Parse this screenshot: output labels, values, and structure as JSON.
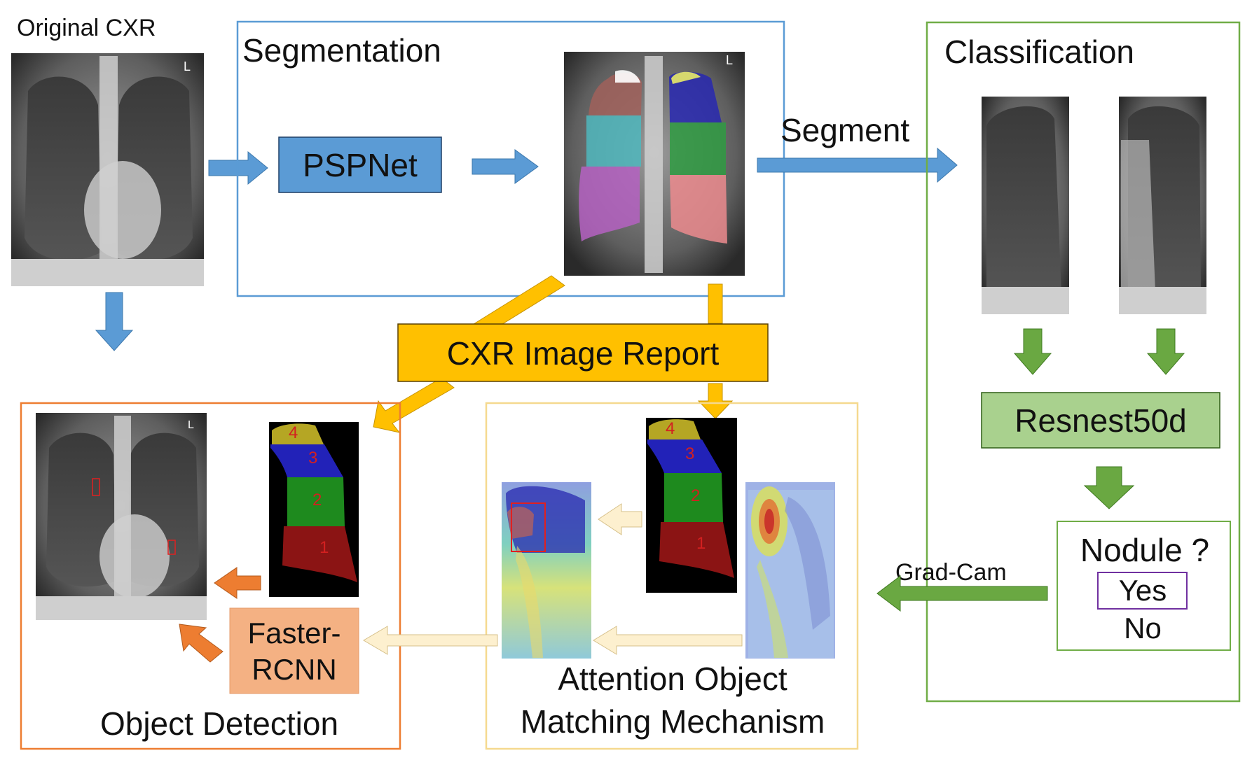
{
  "labels": {
    "original_cxr": "Original CXR",
    "segmentation": "Segmentation",
    "pspnet": "PSPNet",
    "segment": "Segment",
    "classification": "Classification",
    "resnest": "Resnest50d",
    "cxr_report": "CXR Image Report",
    "nodule_question": "Nodule ?",
    "yes": "Yes",
    "no": "No",
    "grad_cam": "Grad-Cam",
    "faster_rcnn_line1": "Faster-",
    "faster_rcnn_line2": "RCNN",
    "object_detection": "Object Detection",
    "attention_line1": "Attention Object",
    "attention_line2": "Matching Mechanism",
    "corner_marker": "L"
  },
  "lung_region_numbers": [
    "4",
    "3",
    "2",
    "1"
  ],
  "colors": {
    "segmentation_box": "#5b9bd5",
    "classification_box": "#70ad47",
    "detection_box": "#ed7d31",
    "attention_box": "#f5d98f",
    "blue_block": "#5b9bd5",
    "green_block": "#a9d18e",
    "report_block": "#ffc000",
    "faster_rcnn_block": "#f4b183",
    "yes_box": "#7030a0",
    "region_4": "#b5a624",
    "region_3": "#2222b8",
    "region_2": "#1e8a1e",
    "region_1": "#8b1414"
  }
}
